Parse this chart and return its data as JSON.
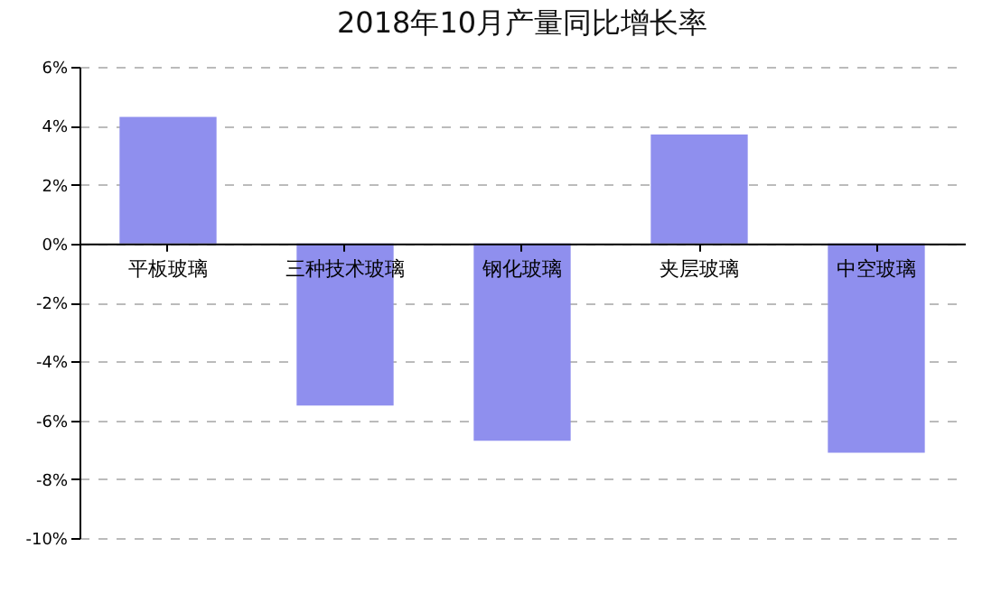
{
  "chart_data": {
    "type": "bar",
    "title": "2018年10月产量同比增长率",
    "categories": [
      "平板玻璃",
      "三种技术玻璃",
      "钢化玻璃",
      "夹层玻璃",
      "中空玻璃"
    ],
    "values": [
      4.3,
      -5.5,
      -6.7,
      3.7,
      -7.1
    ],
    "color": "#8f8fee",
    "ylim": [
      -10,
      6
    ],
    "yticks": [
      {
        "value": 6,
        "label": "6%"
      },
      {
        "value": 4,
        "label": "4%"
      },
      {
        "value": 2,
        "label": "2%"
      },
      {
        "value": 0,
        "label": "0%"
      },
      {
        "value": -2,
        "label": "-2%"
      },
      {
        "value": -4,
        "label": "-4%"
      },
      {
        "value": -6,
        "label": "-6%"
      },
      {
        "value": -8,
        "label": "-8%"
      },
      {
        "value": -10,
        "label": "-10%"
      }
    ],
    "grid": "y"
  }
}
